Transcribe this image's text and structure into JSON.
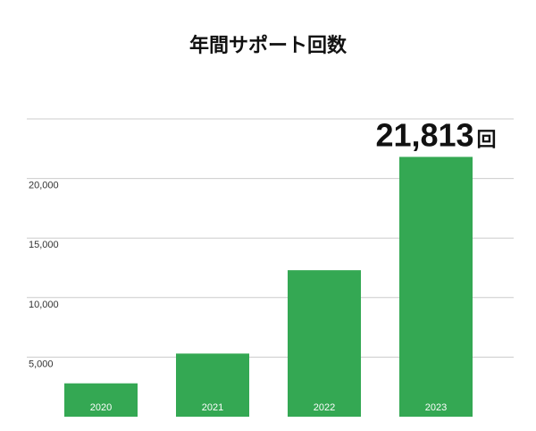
{
  "chart_data": {
    "type": "bar",
    "title": "年間サポート回数",
    "categories": [
      "2020",
      "2021",
      "2022",
      "2023"
    ],
    "values": [
      2800,
      5300,
      12300,
      21813
    ],
    "ylim": [
      0,
      25000
    ],
    "yticks": [
      {
        "value": 5000,
        "label": "5,000"
      },
      {
        "value": 10000,
        "label": "10,000"
      },
      {
        "value": 15000,
        "label": "15,000"
      },
      {
        "value": 20000,
        "label": "20,000"
      }
    ],
    "grid": true,
    "bar_color": "#34a853",
    "annotation": {
      "category": "2023",
      "value_text": "21,813",
      "unit": "回"
    }
  }
}
